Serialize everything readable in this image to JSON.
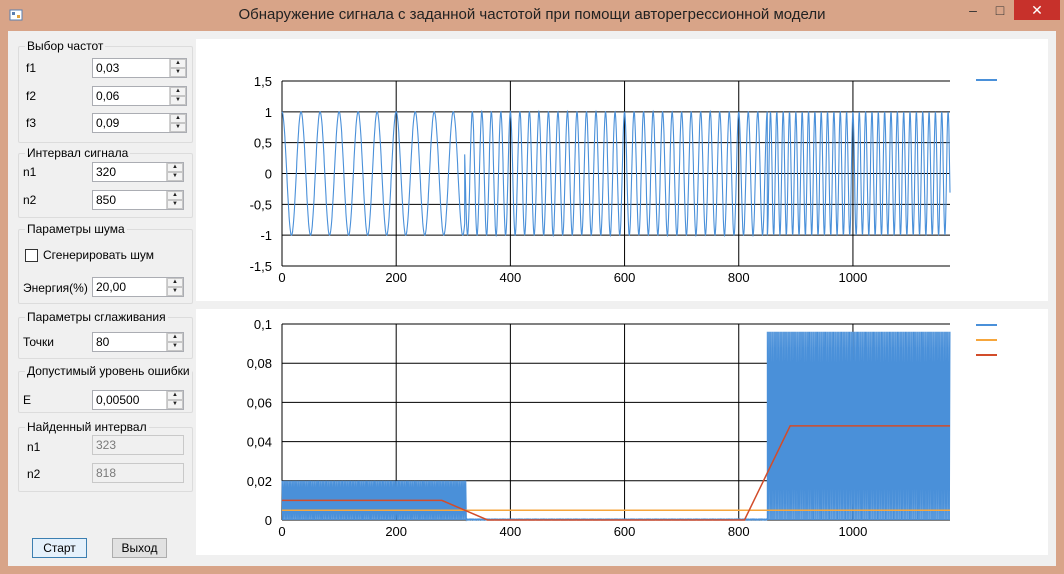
{
  "window": {
    "title": "Обнаружение сигнала с заданной частотой при помощи авторегрессионной модели"
  },
  "freq_group": {
    "title": "Выбор частот",
    "f1": {
      "label": "f1",
      "value": "0,03"
    },
    "f2": {
      "label": "f2",
      "value": "0,06"
    },
    "f3": {
      "label": "f3",
      "value": "0,09"
    }
  },
  "interval_group": {
    "title": "Интервал сигнала",
    "n1": {
      "label": "n1",
      "value": "320"
    },
    "n2": {
      "label": "n2",
      "value": "850"
    }
  },
  "noise_group": {
    "title": "Параметры шума",
    "generate_label": "Сгенерировать шум",
    "generate_checked": false,
    "energy_label": "Энергия(%)",
    "energy_value": "20,00"
  },
  "smooth_group": {
    "title": "Параметры сглаживания",
    "points_label": "Точки",
    "points_value": "80"
  },
  "error_group": {
    "title": "Допустимый уровень ошибки",
    "e_label": "E",
    "e_value": "0,00500"
  },
  "found_group": {
    "title": "Найденный интервал",
    "n1_label": "n1",
    "n1_value": "323",
    "n2_label": "n2",
    "n2_value": "818"
  },
  "buttons": {
    "start": "Старт",
    "exit": "Выход"
  },
  "colors": {
    "series_blue": "#4a90d9",
    "series_orange": "#f6a63c",
    "series_red": "#d24c2a"
  },
  "chart_data": [
    {
      "type": "line",
      "xlim": [
        0,
        1170
      ],
      "ylim": [
        -1.5,
        1.5
      ],
      "x_ticks": [
        "0",
        "200",
        "400",
        "600",
        "800",
        "1000"
      ],
      "y_ticks": [
        "1,5",
        "1",
        "0,5",
        "0",
        "-0,5",
        "-1",
        "-1,5"
      ],
      "grid": true,
      "legend": "top-right",
      "series": [
        {
          "color": "#4a90d9",
          "segments": [
            {
              "from": 0,
              "to": 320,
              "freq": 0.03
            },
            {
              "from": 320,
              "to": 850,
              "freq": 0.06
            },
            {
              "from": 850,
              "to": 1170,
              "freq": 0.09
            }
          ],
          "amplitude": 1
        }
      ]
    },
    {
      "type": "line",
      "xlim": [
        0,
        1170
      ],
      "ylim": [
        0,
        0.1
      ],
      "x_ticks": [
        "0",
        "200",
        "400",
        "600",
        "800",
        "1000"
      ],
      "y_ticks": [
        "0,1",
        "0,08",
        "0,06",
        "0,04",
        "0,02",
        "0"
      ],
      "grid": true,
      "legend": "top-right",
      "series": [
        {
          "color": "#4a90d9",
          "kind": "oscillating",
          "segments": [
            {
              "from": 0,
              "to": 323,
              "max": 0.02
            },
            {
              "from": 323,
              "to": 850,
              "max": 0.0005
            },
            {
              "from": 850,
              "to": 1170,
              "max": 0.096
            }
          ]
        },
        {
          "color": "#f6a63c",
          "x": [
            0,
            1170
          ],
          "y": [
            0.005,
            0.005
          ]
        },
        {
          "color": "#d24c2a",
          "x": [
            0,
            280,
            360,
            810,
            890,
            1170
          ],
          "y": [
            0.01,
            0.01,
            0,
            0,
            0.048,
            0.048
          ]
        }
      ]
    }
  ]
}
